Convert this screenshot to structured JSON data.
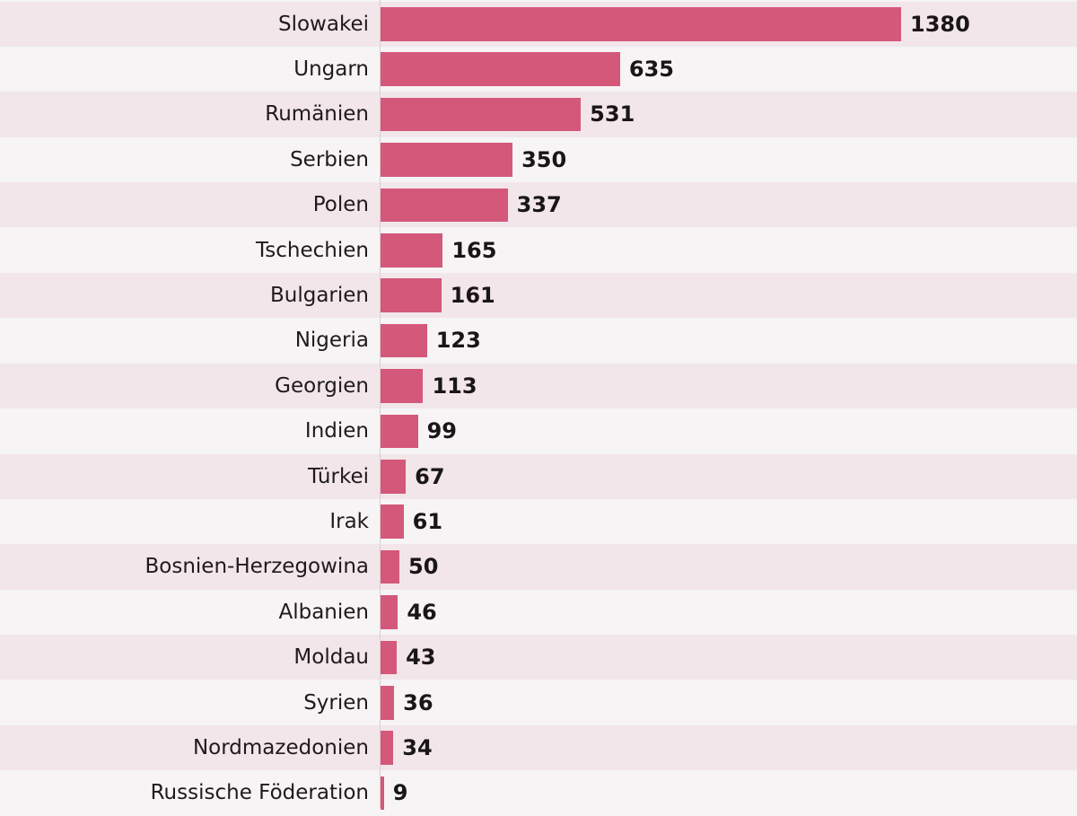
{
  "chart_data": {
    "type": "bar",
    "orientation": "horizontal",
    "title": "",
    "xlabel": "",
    "ylabel": "",
    "categories": [
      "Slowakei",
      "Ungarn",
      "Rumänien",
      "Serbien",
      "Polen",
      "Tschechien",
      "Bulgarien",
      "Nigeria",
      "Georgien",
      "Indien",
      "Türkei",
      "Irak",
      "Bosnien-Herzegowina",
      "Albanien",
      "Moldau",
      "Syrien",
      "Nordmazedonien",
      "Russische Föderation"
    ],
    "values": [
      1380,
      635,
      531,
      350,
      337,
      165,
      161,
      123,
      113,
      99,
      67,
      61,
      50,
      46,
      43,
      36,
      34,
      9
    ],
    "xlim": [
      0,
      1380
    ],
    "grid": false,
    "data_labels": true,
    "colors": {
      "bar": "#d4587a",
      "row_alt": "#f2e6ea",
      "row_plain": "#f6f4f5",
      "text": "#1f1a1c"
    }
  }
}
